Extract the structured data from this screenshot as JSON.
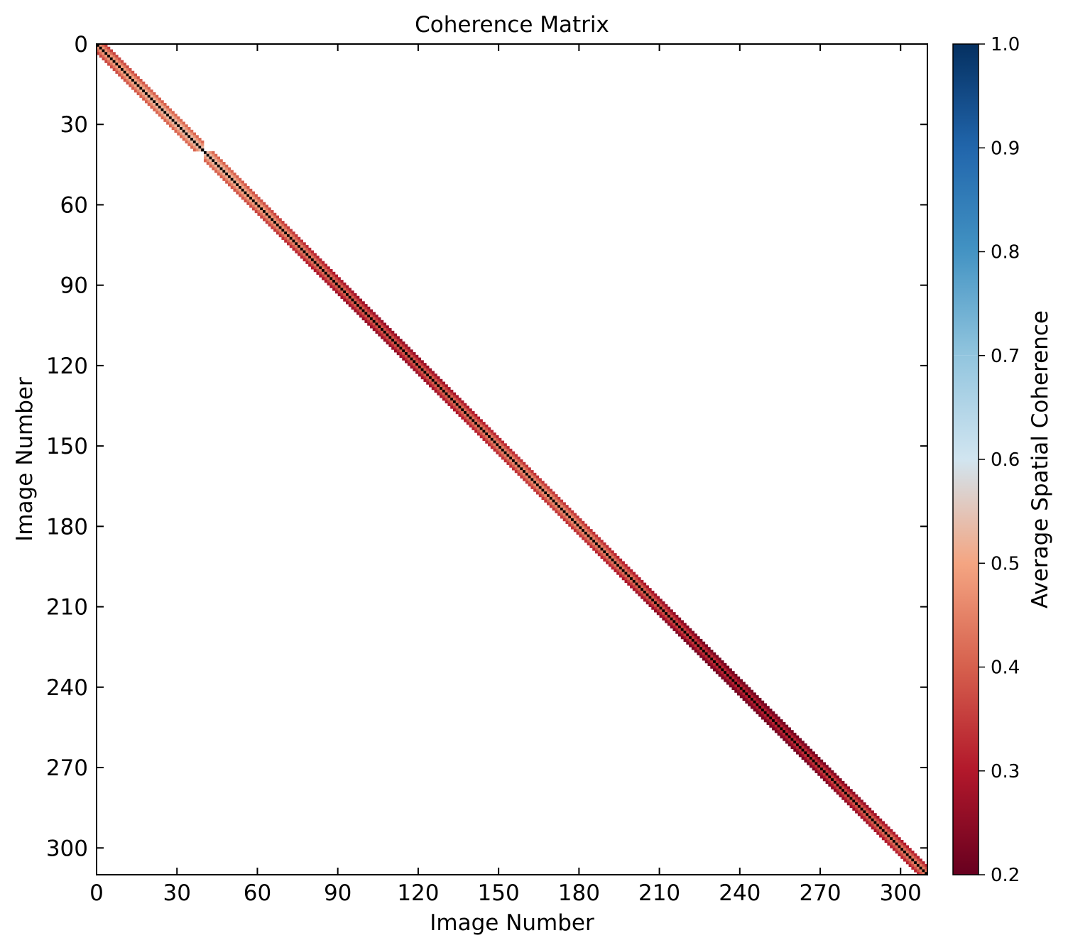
{
  "chart_data": {
    "type": "heatmap",
    "title": "Coherence Matrix",
    "xlabel": "Image Number",
    "ylabel": "Image Number",
    "n_images": 310,
    "x_ticks": [
      0,
      30,
      60,
      90,
      120,
      150,
      180,
      210,
      240,
      270,
      300
    ],
    "y_ticks": [
      0,
      30,
      60,
      90,
      120,
      150,
      180,
      210,
      240,
      270,
      300
    ],
    "y_axis_inverted": true,
    "band_halfwidth_images": 3,
    "band_gap_at_image": 40,
    "diagonal_value": 1.0,
    "offdiagonal_mean_value": 0.4,
    "colorbar": {
      "label": "Average Spatial Coherence",
      "vmin": 0.2,
      "vmax": 1.0,
      "ticks": [
        0.2,
        0.3,
        0.4,
        0.5,
        0.6,
        0.7,
        0.8,
        0.9,
        1.0
      ],
      "tick_labels": [
        "0.2",
        "0.3",
        "0.4",
        "0.5",
        "0.6",
        "0.7",
        "0.8",
        "0.9",
        "1.0"
      ],
      "colormap": "RdBu",
      "colormap_stops": [
        "#67001f",
        "#b2182b",
        "#d6604d",
        "#f4a582",
        "#d1e5f0",
        "#92c5de",
        "#4393c3",
        "#2166ac",
        "#053061"
      ],
      "discontinuity_at": 0.7
    },
    "grid": false
  }
}
